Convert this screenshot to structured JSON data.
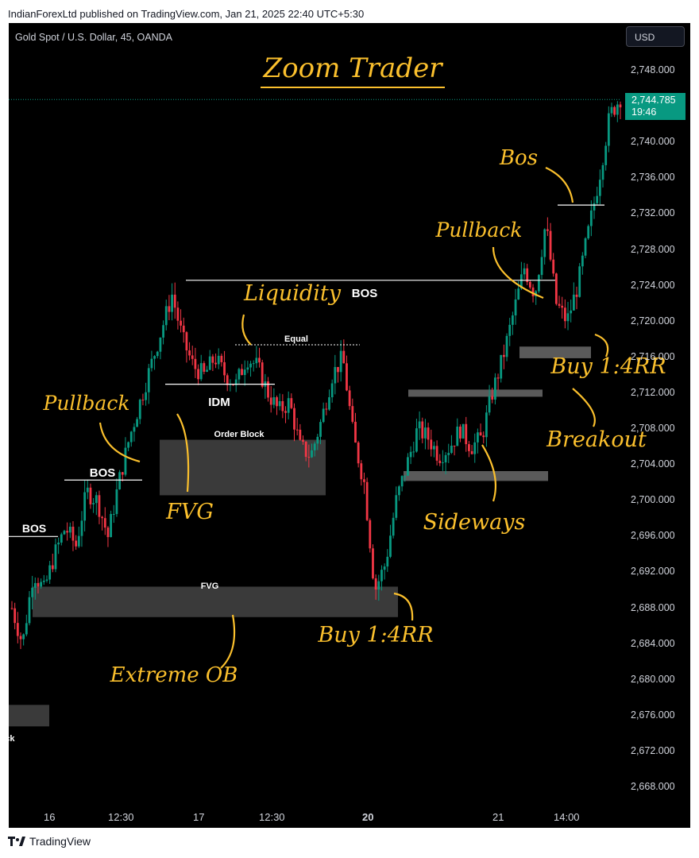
{
  "header": {
    "published": "IndianForexLtd published on TradingView.com, Jan 21, 2025 22:40 UTC+5:30",
    "footer_brand": "TradingView"
  },
  "toolbar": {
    "symbol": "Gold Spot / U.S. Dollar, 45, OANDA",
    "currency": "USD"
  },
  "colors": {
    "background": "#000000",
    "up": "#089981",
    "down": "#f23645",
    "annotation": "#fbc02d",
    "zone": "#3a3a3a"
  },
  "chart_data": {
    "type": "candlestick",
    "title": "Zoom Trader",
    "price_axis": {
      "min": 2666,
      "max": 2750,
      "ticks": [
        "2,748.000",
        "2,744.000",
        "2,740.000",
        "2,736.000",
        "2,732.000",
        "2,728.000",
        "2,724.000",
        "2,720.000",
        "2,716.000",
        "2,712.000",
        "2,708.000",
        "2,704.000",
        "2,700.000",
        "2,696.000",
        "2,692.000",
        "2,688.000",
        "2,684.000",
        "2,680.000",
        "2,676.000",
        "2,672.000",
        "2,668.000"
      ]
    },
    "time_axis": [
      {
        "label": "16",
        "bold": false
      },
      {
        "label": "12:30",
        "bold": false
      },
      {
        "label": "17",
        "bold": false
      },
      {
        "label": "12:30",
        "bold": false
      },
      {
        "label": "20",
        "bold": true
      },
      {
        "label": "21",
        "bold": false
      },
      {
        "label": "14:00",
        "bold": false
      }
    ],
    "last_price": {
      "value": 2744.785,
      "label": "2,744.785",
      "countdown": "19:46"
    },
    "close_path": [
      2688,
      2684,
      2692,
      2690,
      2694,
      2697,
      2695,
      2701,
      2700,
      2696,
      2702,
      2707,
      2711,
      2715,
      2719,
      2723,
      2718,
      2715,
      2714,
      2716,
      2714,
      2713,
      2716,
      2715,
      2712,
      2710,
      2711,
      2706,
      2705,
      2709,
      2714,
      2716,
      2707,
      2702,
      2690,
      2693,
      2700,
      2704,
      2708,
      2707,
      2705,
      2706,
      2708,
      2706,
      2707,
      2712,
      2716,
      2721,
      2726,
      2723,
      2731,
      2722,
      2720,
      2724,
      2730,
      2736,
      2743,
      2745
    ],
    "annotations": [
      {
        "text": "Zoom Trader",
        "kind": "title"
      },
      {
        "text": "BOS",
        "kind": "label"
      },
      {
        "text": "BOS",
        "kind": "label"
      },
      {
        "text": "BOS",
        "kind": "label"
      },
      {
        "text": "IDM",
        "kind": "label"
      },
      {
        "text": "Equal",
        "kind": "label"
      },
      {
        "text": "Order Block",
        "kind": "label"
      },
      {
        "text": "FVG",
        "kind": "label"
      },
      {
        "text": "ock",
        "kind": "label"
      },
      {
        "text": "Liquidity",
        "kind": "handwritten"
      },
      {
        "text": "Pullback",
        "kind": "handwritten"
      },
      {
        "text": "Pullback",
        "kind": "handwritten"
      },
      {
        "text": "FVG",
        "kind": "handwritten"
      },
      {
        "text": "Extreme OB",
        "kind": "handwritten"
      },
      {
        "text": "Buy 1:4RR",
        "kind": "handwritten"
      },
      {
        "text": "Buy 1:4RR",
        "kind": "handwritten"
      },
      {
        "text": "Sideways",
        "kind": "handwritten"
      },
      {
        "text": "Breakout",
        "kind": "handwritten"
      },
      {
        "text": "Bos",
        "kind": "handwritten"
      }
    ]
  }
}
